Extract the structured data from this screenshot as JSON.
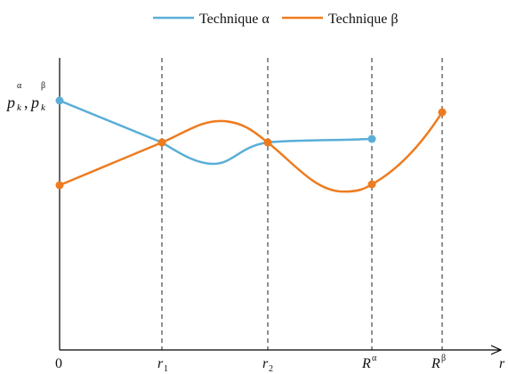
{
  "legend": [
    {
      "id": "alpha",
      "label": "Technique α",
      "color": "#5aaed8"
    },
    {
      "id": "beta",
      "label": "Technique β",
      "color": "#ee7b1f"
    }
  ],
  "axes": {
    "origin_label": "0",
    "x_axis_label": "r",
    "y_axis_label": {
      "p": "p",
      "k": "k",
      "alpha": "α",
      "comma": ",",
      "beta": "β"
    }
  },
  "x_markers": [
    {
      "id": "r1",
      "base": "r",
      "sub": "1"
    },
    {
      "id": "r2",
      "base": "r",
      "sub": "2"
    },
    {
      "id": "R-alpha",
      "base": "R",
      "sup": "α"
    },
    {
      "id": "R-beta",
      "base": "R",
      "sup": "β"
    }
  ],
  "colors": {
    "axis": "#000000",
    "guide": "#222222",
    "alpha": "#5aaed8",
    "beta": "#ee7b1f"
  },
  "curves": {
    "alpha": {
      "marked_points": [
        "0",
        "r1",
        "r2",
        "R-alpha"
      ]
    },
    "beta": {
      "marked_points": [
        "0",
        "r1",
        "r2",
        "R-alpha",
        "R-beta"
      ]
    }
  }
}
